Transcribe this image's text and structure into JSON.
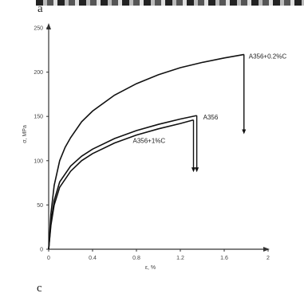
{
  "panel_labels": {
    "top": "a",
    "bottom": "c"
  },
  "chart_data": {
    "type": "line",
    "xlabel": "ε, %",
    "ylabel": "σ, MPa",
    "xlim": [
      0,
      2
    ],
    "ylim": [
      0,
      250
    ],
    "x_ticks": [
      "0",
      "0.4",
      "0.8",
      "1.2",
      "1.6",
      "2"
    ],
    "y_ticks": [
      "0",
      "50",
      "100",
      "150",
      "200",
      "250"
    ],
    "series": [
      {
        "name": "A356+0.2%C",
        "x": [
          0,
          0.02,
          0.05,
          0.1,
          0.15,
          0.2,
          0.3,
          0.4,
          0.6,
          0.8,
          1.0,
          1.2,
          1.4,
          1.6,
          1.78
        ],
        "y": [
          0,
          40,
          72,
          100,
          115,
          126,
          144,
          156,
          174,
          187,
          197,
          205,
          211,
          216,
          220
        ],
        "fracture": {
          "x": 1.78,
          "y_to": 130
        }
      },
      {
        "name": "A356",
        "x": [
          0,
          0.02,
          0.05,
          0.1,
          0.2,
          0.3,
          0.4,
          0.6,
          0.8,
          1.0,
          1.2,
          1.35
        ],
        "y": [
          0,
          30,
          55,
          76,
          94,
          105,
          113,
          125,
          134,
          141,
          147,
          151
        ],
        "fracture": {
          "x": 1.35,
          "y_to": 87
        }
      },
      {
        "name": "A356+1%C",
        "x": [
          0,
          0.02,
          0.05,
          0.1,
          0.2,
          0.3,
          0.4,
          0.6,
          0.8,
          1.0,
          1.2,
          1.32
        ],
        "y": [
          0,
          27,
          50,
          70,
          88,
          100,
          108,
          120,
          129,
          136,
          142,
          146
        ],
        "fracture": {
          "x": 1.32,
          "y_to": 87
        }
      }
    ]
  }
}
